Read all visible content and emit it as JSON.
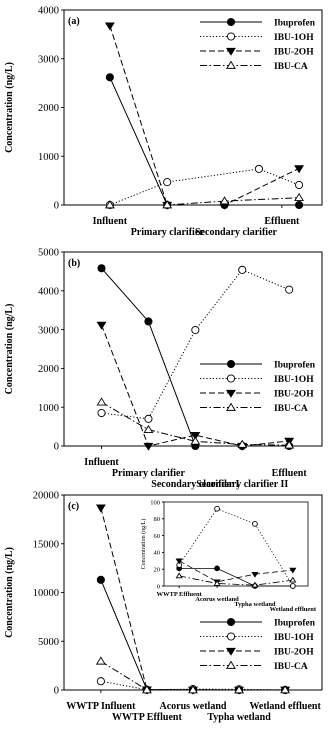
{
  "chart_data": [
    {
      "type": "line",
      "panel_label": "(a)",
      "ylabel": "Concentration (ng/L)",
      "ylim": [
        0,
        4000
      ],
      "yticks": [
        0,
        1000,
        2000,
        3000,
        4000
      ],
      "categories": [
        "Influent",
        "Primary clarifier",
        "Secondary clarifier",
        "Effluent"
      ],
      "x": [
        1,
        2,
        3,
        4
      ],
      "xlim": [
        0.2,
        4.7
      ],
      "category_label_x": [
        1,
        2,
        3.2,
        4
      ],
      "category_label_row": [
        0,
        1,
        1,
        0
      ],
      "legend_position": "top-right",
      "series": [
        {
          "name": "Ibuprofen",
          "style": "solid-filled-circle",
          "x": [
            1,
            2,
            3,
            4.3
          ],
          "values": [
            2620,
            0,
            0,
            0
          ]
        },
        {
          "name": "IBU-1OH",
          "style": "dotted-open-circle",
          "x": [
            1,
            2,
            3.6,
            4.3
          ],
          "values": [
            0,
            470,
            740,
            410
          ]
        },
        {
          "name": "IBU-2OH",
          "style": "short-dash-filled-triangle",
          "x": [
            1,
            2,
            3,
            4.3
          ],
          "values": [
            3680,
            0,
            0,
            750
          ]
        },
        {
          "name": "IBU-CA",
          "style": "dash-dot-open-triangle",
          "x": [
            1,
            2,
            3,
            4.3
          ],
          "values": [
            0,
            0,
            80,
            150
          ]
        }
      ]
    },
    {
      "type": "line",
      "panel_label": "(b)",
      "ylabel": "Concentration (ng/L)",
      "ylim": [
        0,
        5000
      ],
      "yticks": [
        0,
        1000,
        2000,
        3000,
        4000,
        5000
      ],
      "categories": [
        "Influent",
        "Primary clarifier",
        "Secondary clarifier I",
        "Secondary clarifier II",
        "Effluent"
      ],
      "x": [
        1,
        2,
        3,
        4,
        5
      ],
      "xlim": [
        0.2,
        5.7
      ],
      "category_label_x": [
        1,
        2,
        3,
        4,
        5
      ],
      "category_label_row": [
        0,
        1,
        2,
        2,
        1
      ],
      "legend_position": "right",
      "series": [
        {
          "name": "Ibuprofen",
          "style": "solid-filled-circle",
          "values": [
            4580,
            3210,
            0,
            0,
            0
          ]
        },
        {
          "name": "IBU-1OH",
          "style": "dotted-open-circle",
          "values": [
            850,
            700,
            2990,
            4540,
            4030
          ]
        },
        {
          "name": "IBU-2OH",
          "style": "short-dash-filled-triangle",
          "values": [
            3120,
            0,
            280,
            0,
            130
          ]
        },
        {
          "name": "IBU-CA",
          "style": "dash-dot-open-triangle",
          "values": [
            1130,
            420,
            120,
            40,
            20
          ]
        }
      ]
    },
    {
      "type": "line",
      "panel_label": "(c)",
      "ylabel": "Concentration (ng/L)",
      "ylim": [
        0,
        20000
      ],
      "yticks": [
        0,
        5000,
        10000,
        15000,
        20000
      ],
      "categories": [
        "WWTP Influent",
        "WWTP Effluent",
        "Acorus wetland",
        "Typha wetland",
        "Wetland effluent"
      ],
      "x": [
        1,
        2,
        3,
        4,
        5
      ],
      "xlim": [
        0.2,
        5.8
      ],
      "category_label_x": [
        1,
        2,
        3,
        4,
        5
      ],
      "category_label_row": [
        0,
        1,
        0,
        1,
        0
      ],
      "legend_position": "bottom-right",
      "series": [
        {
          "name": "Ibuprofen",
          "style": "solid-filled-circle",
          "values": [
            11300,
            21,
            21,
            0,
            0
          ]
        },
        {
          "name": "IBU-1OH",
          "style": "dotted-open-circle",
          "values": [
            900,
            25,
            92,
            74,
            0
          ]
        },
        {
          "name": "IBU-2OH",
          "style": "short-dash-filled-triangle",
          "values": [
            18700,
            30,
            5,
            14,
            19
          ]
        },
        {
          "name": "IBU-CA",
          "style": "dash-dot-open-triangle",
          "values": [
            2950,
            12,
            3,
            1,
            7
          ]
        }
      ],
      "inset": {
        "ylabel": "Concentration (ng/L)",
        "ylim": [
          0,
          100
        ],
        "yticks": [
          0,
          20,
          40,
          60,
          80,
          100
        ],
        "categories": [
          "WWTP Effluent",
          "Acorus wetland",
          "Typha wetland",
          "Wetland effluent"
        ],
        "x": [
          1,
          2,
          3,
          4
        ],
        "xlim": [
          0.6,
          4.4
        ],
        "category_label_x": [
          1,
          2,
          3,
          4
        ],
        "category_label_row": [
          0,
          1,
          2,
          3
        ],
        "series": [
          {
            "name": "Ibuprofen",
            "style": "solid-filled-circle",
            "values": [
              21,
              21,
              0,
              0
            ]
          },
          {
            "name": "IBU-1OH",
            "style": "dotted-open-circle",
            "values": [
              25,
              92,
              74,
              0
            ]
          },
          {
            "name": "IBU-2OH",
            "style": "short-dash-filled-triangle",
            "values": [
              30,
              5,
              14,
              19
            ]
          },
          {
            "name": "IBU-CA",
            "style": "dash-dot-open-triangle",
            "values": [
              12,
              3,
              1,
              7
            ]
          }
        ]
      }
    }
  ]
}
